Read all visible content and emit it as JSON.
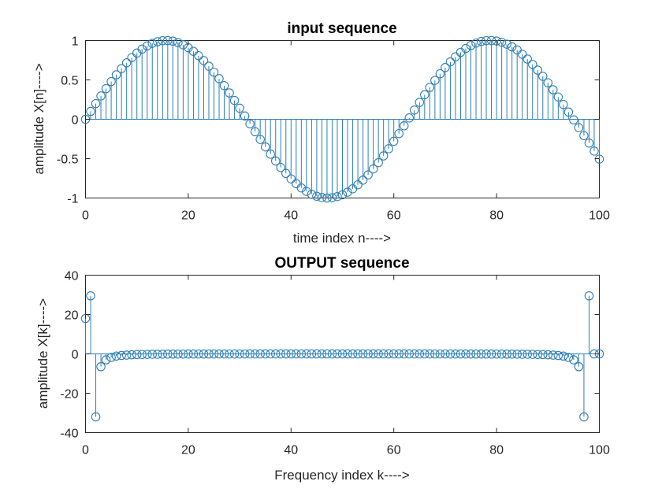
{
  "chart_data": [
    {
      "type": "stem",
      "title": "input sequence",
      "xlabel": "time index n---->",
      "ylabel": "amplitude X[n]---->",
      "xlim": [
        0,
        100
      ],
      "ylim": [
        -1,
        1
      ],
      "xticks": [
        "0",
        "20",
        "40",
        "60",
        "80",
        "100"
      ],
      "yticks": [
        "1",
        "0.5",
        "0",
        "-0.5",
        "-1"
      ],
      "grid": false,
      "color": "#2f7fb5",
      "series": [
        {
          "x": [
            0,
            1,
            2,
            3,
            4,
            5,
            6,
            7,
            8,
            9,
            10,
            11,
            12,
            13,
            14,
            15,
            16,
            17,
            18,
            19,
            20,
            21,
            22,
            23,
            24,
            25,
            26,
            27,
            28,
            29,
            30,
            31,
            32,
            33,
            34,
            35,
            36,
            37,
            38,
            39,
            40,
            41,
            42,
            43,
            44,
            45,
            46,
            47,
            48,
            49,
            50,
            51,
            52,
            53,
            54,
            55,
            56,
            57,
            58,
            59,
            60,
            61,
            62,
            63,
            64,
            65,
            66,
            67,
            68,
            69,
            70,
            71,
            72,
            73,
            74,
            75,
            76,
            77,
            78,
            79,
            80,
            81,
            82,
            83,
            84,
            85,
            86,
            87,
            88,
            89,
            90,
            91,
            92,
            93,
            94,
            95,
            96,
            97,
            98,
            99,
            100
          ],
          "y": [
            0,
            0.1,
            0.199,
            0.296,
            0.389,
            0.479,
            0.565,
            0.644,
            0.717,
            0.783,
            0.841,
            0.891,
            0.932,
            0.964,
            0.985,
            0.997,
            1.0,
            0.992,
            0.974,
            0.946,
            0.909,
            0.863,
            0.808,
            0.746,
            0.675,
            0.598,
            0.516,
            0.427,
            0.335,
            0.239,
            0.141,
            0.042,
            -0.058,
            -0.158,
            -0.256,
            -0.351,
            -0.443,
            -0.53,
            -0.612,
            -0.688,
            -0.757,
            -0.818,
            -0.872,
            -0.916,
            -0.952,
            -0.978,
            -0.994,
            -1.0,
            -0.996,
            -0.982,
            -0.959,
            -0.926,
            -0.883,
            -0.832,
            -0.773,
            -0.706,
            -0.631,
            -0.551,
            -0.465,
            -0.374,
            -0.279,
            -0.182,
            -0.083,
            0.017,
            0.117,
            0.215,
            0.312,
            0.405,
            0.494,
            0.578,
            0.657,
            0.729,
            0.794,
            0.85,
            0.899,
            0.938,
            0.968,
            0.988,
            0.999,
            1.0,
            0.994,
            0.978,
            0.954,
            0.92,
            0.881,
            0.826,
            0.765,
            0.698,
            0.625,
            0.546,
            0.463,
            0.375,
            0.283,
            0.188,
            0.092,
            -0.008,
            -0.106,
            -0.207,
            -0.302,
            -0.404,
            -0.506
          ]
        }
      ]
    },
    {
      "type": "stem",
      "title": "OUTPUT sequence",
      "xlabel": "Frequency index k---->",
      "ylabel": "amplitude X[k]---->",
      "xlim": [
        0,
        100
      ],
      "ylim": [
        -40,
        40
      ],
      "xticks": [
        "0",
        "20",
        "40",
        "60",
        "80",
        "100"
      ],
      "yticks": [
        "40",
        "20",
        "0",
        "-20",
        "-40"
      ],
      "grid": false,
      "color": "#2f7fb5",
      "series": [
        {
          "x": [
            0,
            1,
            2,
            3,
            4,
            5,
            6,
            7,
            8,
            9,
            10,
            11,
            12,
            13,
            14,
            15,
            16,
            17,
            18,
            19,
            20,
            21,
            22,
            23,
            24,
            25,
            26,
            27,
            28,
            29,
            30,
            31,
            32,
            33,
            34,
            35,
            36,
            37,
            38,
            39,
            40,
            41,
            42,
            43,
            44,
            45,
            46,
            47,
            48,
            49,
            50,
            51,
            52,
            53,
            54,
            55,
            56,
            57,
            58,
            59,
            60,
            61,
            62,
            63,
            64,
            65,
            66,
            67,
            68,
            69,
            70,
            71,
            72,
            73,
            74,
            75,
            76,
            77,
            78,
            79,
            80,
            81,
            82,
            83,
            84,
            85,
            86,
            87,
            88,
            89,
            90,
            91,
            92,
            93,
            94,
            95,
            96,
            97,
            98,
            99,
            100
          ],
          "y": [
            18,
            29.5,
            -32,
            -6.5,
            -3,
            -1.8,
            -1.1,
            -0.8,
            -0.6,
            -0.45,
            -0.35,
            -0.28,
            -0.23,
            -0.19,
            -0.16,
            -0.14,
            -0.12,
            -0.1,
            -0.09,
            -0.08,
            -0.07,
            -0.06,
            -0.06,
            -0.05,
            -0.05,
            -0.04,
            -0.04,
            -0.04,
            -0.03,
            -0.03,
            -0.03,
            -0.03,
            -0.02,
            -0.02,
            -0.02,
            -0.02,
            -0.02,
            -0.02,
            -0.02,
            -0.01,
            -0.01,
            -0.01,
            -0.01,
            -0.01,
            -0.01,
            -0.01,
            -0.01,
            -0.01,
            -0.01,
            0,
            0,
            0,
            -0.01,
            -0.01,
            -0.01,
            -0.01,
            -0.01,
            -0.01,
            -0.01,
            -0.01,
            -0.01,
            -0.02,
            -0.02,
            -0.02,
            -0.02,
            -0.02,
            -0.02,
            -0.02,
            -0.03,
            -0.03,
            -0.03,
            -0.03,
            -0.04,
            -0.04,
            -0.04,
            -0.05,
            -0.05,
            -0.06,
            -0.06,
            -0.07,
            -0.08,
            -0.09,
            -0.1,
            -0.12,
            -0.14,
            -0.16,
            -0.19,
            -0.23,
            -0.28,
            -0.35,
            -0.45,
            -0.6,
            -0.8,
            -1.1,
            -1.8,
            -3,
            -6.5,
            -32,
            29.5,
            0,
            0
          ]
        }
      ]
    }
  ]
}
